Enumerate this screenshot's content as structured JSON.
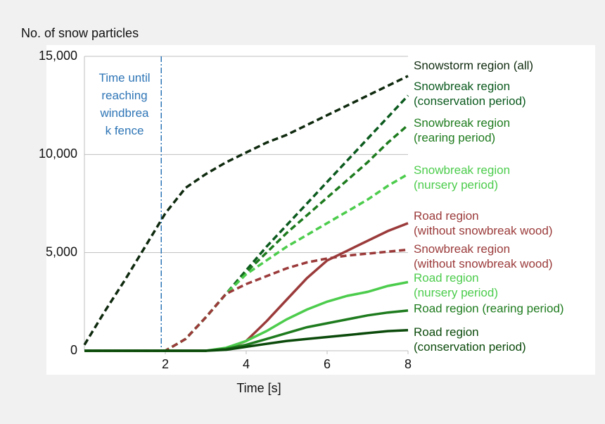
{
  "chart_data": {
    "type": "line",
    "y_label": "No. of snow particles",
    "x_label": "Time [s]",
    "annotation": "Time until\nreaching\nwindbrea\nk fence",
    "annotation_color": "#2e75b6",
    "vline": 1.9,
    "xlim": [
      0,
      8
    ],
    "xticks": [
      2,
      4,
      6,
      8
    ],
    "ylim": [
      0,
      15000
    ],
    "yticks": [
      0,
      {
        "value": 5000,
        "label": "5,000"
      },
      {
        "value": 10000,
        "label": "10,000"
      },
      {
        "value": 15000,
        "label": "15,000"
      }
    ],
    "grid": true,
    "x": [
      0,
      0.5,
      1,
      1.5,
      2,
      2.5,
      3,
      3.5,
      4,
      4.5,
      5,
      5.5,
      6,
      6.5,
      7,
      7.5,
      8
    ],
    "series": [
      {
        "name": "Snowstorm region (all)",
        "color": "#0f2a0f",
        "style": "dashed",
        "values": [
          300,
          2000,
          3600,
          5300,
          7000,
          8300,
          9000,
          9600,
          10100,
          10600,
          11000,
          11500,
          12000,
          12500,
          13000,
          13500,
          14000
        ]
      },
      {
        "name": "Snowbreak region\n(conservation period)",
        "color": "#0b5a1e",
        "style": "dashed",
        "values": [
          0,
          0,
          0,
          0,
          0,
          600,
          1700,
          2900,
          4100,
          5300,
          6400,
          7500,
          8600,
          9700,
          10800,
          11900,
          13000
        ]
      },
      {
        "name": "Snowbreak region\n(rearing period)",
        "color": "#1e7b1e",
        "style": "dashed",
        "values": [
          0,
          0,
          0,
          0,
          0,
          600,
          1700,
          2900,
          4000,
          5000,
          6000,
          6900,
          7800,
          8700,
          9600,
          10600,
          11500
        ]
      },
      {
        "name": "Snowbreak region\n(nursery period)",
        "color": "#4ccc4c",
        "style": "dashed",
        "values": [
          0,
          0,
          0,
          0,
          0,
          600,
          1700,
          2900,
          3900,
          4600,
          5300,
          5900,
          6500,
          7100,
          7700,
          8400,
          9000
        ]
      },
      {
        "name": "Road region\n(without snowbreak wood)",
        "color": "#9b3a3a",
        "style": "solid",
        "values": [
          0,
          0,
          0,
          0,
          0,
          0,
          0,
          100,
          500,
          1500,
          2600,
          3700,
          4600,
          5100,
          5600,
          6100,
          6500
        ]
      },
      {
        "name": "Snowbreak region\n(without snowbreak wood)",
        "color": "#9b3a3a",
        "style": "dashed",
        "values": [
          0,
          0,
          0,
          0,
          0,
          600,
          1700,
          2900,
          3400,
          3800,
          4200,
          4500,
          4700,
          4850,
          4950,
          5050,
          5150
        ]
      },
      {
        "name": "Road region\n(nursery period)",
        "color": "#4ccc4c",
        "style": "solid",
        "values": [
          0,
          0,
          0,
          0,
          0,
          0,
          0,
          150,
          500,
          1000,
          1600,
          2100,
          2500,
          2800,
          3000,
          3300,
          3500
        ]
      },
      {
        "name": "Road region (rearing period)",
        "color": "#1e7b1e",
        "style": "solid",
        "values": [
          0,
          0,
          0,
          0,
          0,
          0,
          0,
          100,
          300,
          600,
          900,
          1200,
          1400,
          1600,
          1800,
          1950,
          2050
        ]
      },
      {
        "name": "Road region\n(conservation period)",
        "color": "#0b4a0b",
        "style": "solid",
        "values": [
          0,
          0,
          0,
          0,
          0,
          0,
          0,
          50,
          200,
          350,
          500,
          600,
          700,
          800,
          900,
          1000,
          1050
        ]
      }
    ]
  }
}
